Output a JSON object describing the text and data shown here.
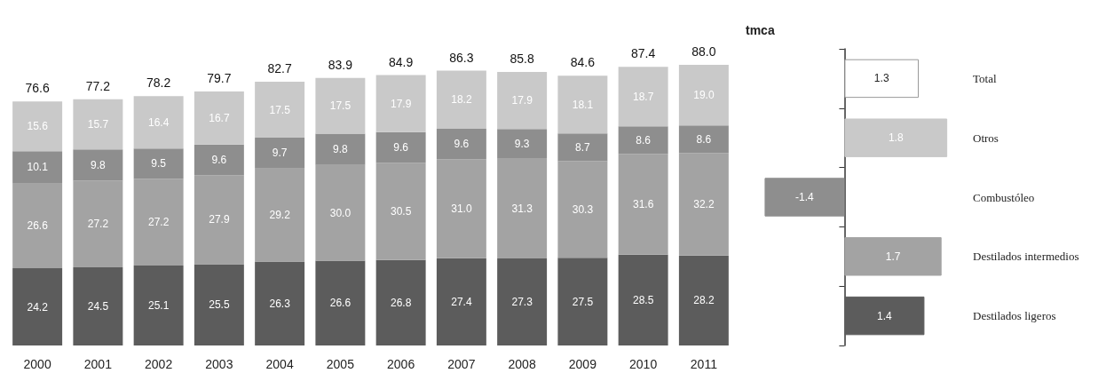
{
  "chart_data": [
    {
      "type": "bar",
      "stacked": true,
      "data_labels": true,
      "tick_labels": "x",
      "categories": [
        "2000",
        "2001",
        "2002",
        "2003",
        "2004",
        "2005",
        "2006",
        "2007",
        "2008",
        "2009",
        "2010",
        "2011"
      ],
      "series": [
        {
          "color": "#5c5c5c",
          "values": [
            24.2,
            24.5,
            25.1,
            25.5,
            26.3,
            26.6,
            26.8,
            27.4,
            27.3,
            27.5,
            28.5,
            28.2
          ]
        },
        {
          "color": "#a3a3a3",
          "values": [
            26.6,
            27.2,
            27.2,
            27.9,
            29.2,
            30.0,
            30.5,
            31.0,
            31.3,
            30.3,
            31.6,
            32.2
          ],
          "value_labels": [
            "26.6",
            "27.2",
            "27.2",
            "27.9",
            "29.2",
            "30.0",
            "30.5",
            "31.0",
            "31.3",
            "30.3",
            "31.6",
            "32.2"
          ]
        },
        {
          "color": "#8e8e8e",
          "values": [
            10.1,
            9.8,
            9.5,
            9.6,
            9.7,
            9.8,
            9.6,
            9.6,
            9.3,
            8.7,
            8.6,
            8.6
          ]
        },
        {
          "color": "#c9c9c9",
          "values": [
            15.6,
            15.7,
            16.4,
            16.7,
            17.5,
            17.5,
            17.9,
            18.2,
            17.9,
            18.1,
            18.7,
            19.0
          ],
          "value_labels": [
            "15.6",
            "15.7",
            "16.4",
            "16.7",
            "17.5",
            "17.5",
            "17.9",
            "18.2",
            "17.9",
            "18.1",
            "18.7",
            "19.0"
          ]
        }
      ],
      "totals": [
        "76.6",
        "77.2",
        "78.2",
        "79.7",
        "82.7",
        "83.9",
        "84.9",
        "86.3",
        "85.8",
        "84.6",
        "87.4",
        "88.0"
      ]
    },
    {
      "type": "bar",
      "orientation": "horizontal",
      "title": "tmca",
      "data_labels": true,
      "tick_labels": "y",
      "categories": [
        "Total",
        "Otros",
        "Combustóleo",
        "Destilados intermedios",
        "Destilados ligeros"
      ],
      "values": [
        1.3,
        1.8,
        -1.4,
        1.7,
        1.4
      ],
      "colors": [
        "#ffffff",
        "#c9c9c9",
        "#8e8e8e",
        "#a3a3a3",
        "#5c5c5c"
      ]
    }
  ]
}
